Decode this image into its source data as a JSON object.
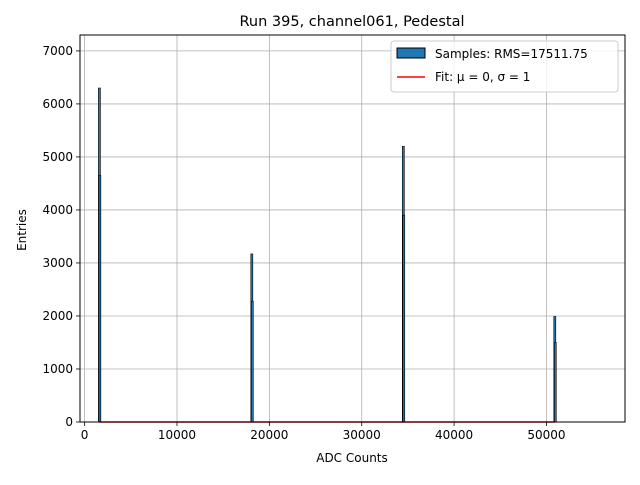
{
  "chart_data": {
    "type": "bar",
    "title": "Run 395, channel061, Pedestal",
    "xlabel": "ADC Counts",
    "ylabel": "Entries",
    "xlim": [
      -500,
      58500
    ],
    "ylim": [
      0,
      7300
    ],
    "xticks": [
      0,
      10000,
      20000,
      30000,
      40000,
      50000
    ],
    "yticks": [
      0,
      1000,
      2000,
      3000,
      4000,
      5000,
      6000,
      7000
    ],
    "grid": true,
    "legend_position": "top-right",
    "series": [
      {
        "name": "Samples: RMS=17511.75",
        "style": "histogram",
        "color": "#1f77b4",
        "edge_color": "#000000",
        "bins": [
          {
            "x": 1600,
            "count": 6300
          },
          {
            "x": 1650,
            "count": 4650
          },
          {
            "x": 18100,
            "count": 3170
          },
          {
            "x": 18150,
            "count": 2280
          },
          {
            "x": 34500,
            "count": 5200
          },
          {
            "x": 34550,
            "count": 3900
          },
          {
            "x": 50900,
            "count": 1990
          },
          {
            "x": 50950,
            "count": 1500
          }
        ]
      },
      {
        "name": "Fit: μ = 0, σ = 1",
        "style": "line",
        "color": "#ff0000",
        "x": [
          1600,
          50950
        ],
        "y": [
          0,
          0
        ]
      }
    ]
  }
}
